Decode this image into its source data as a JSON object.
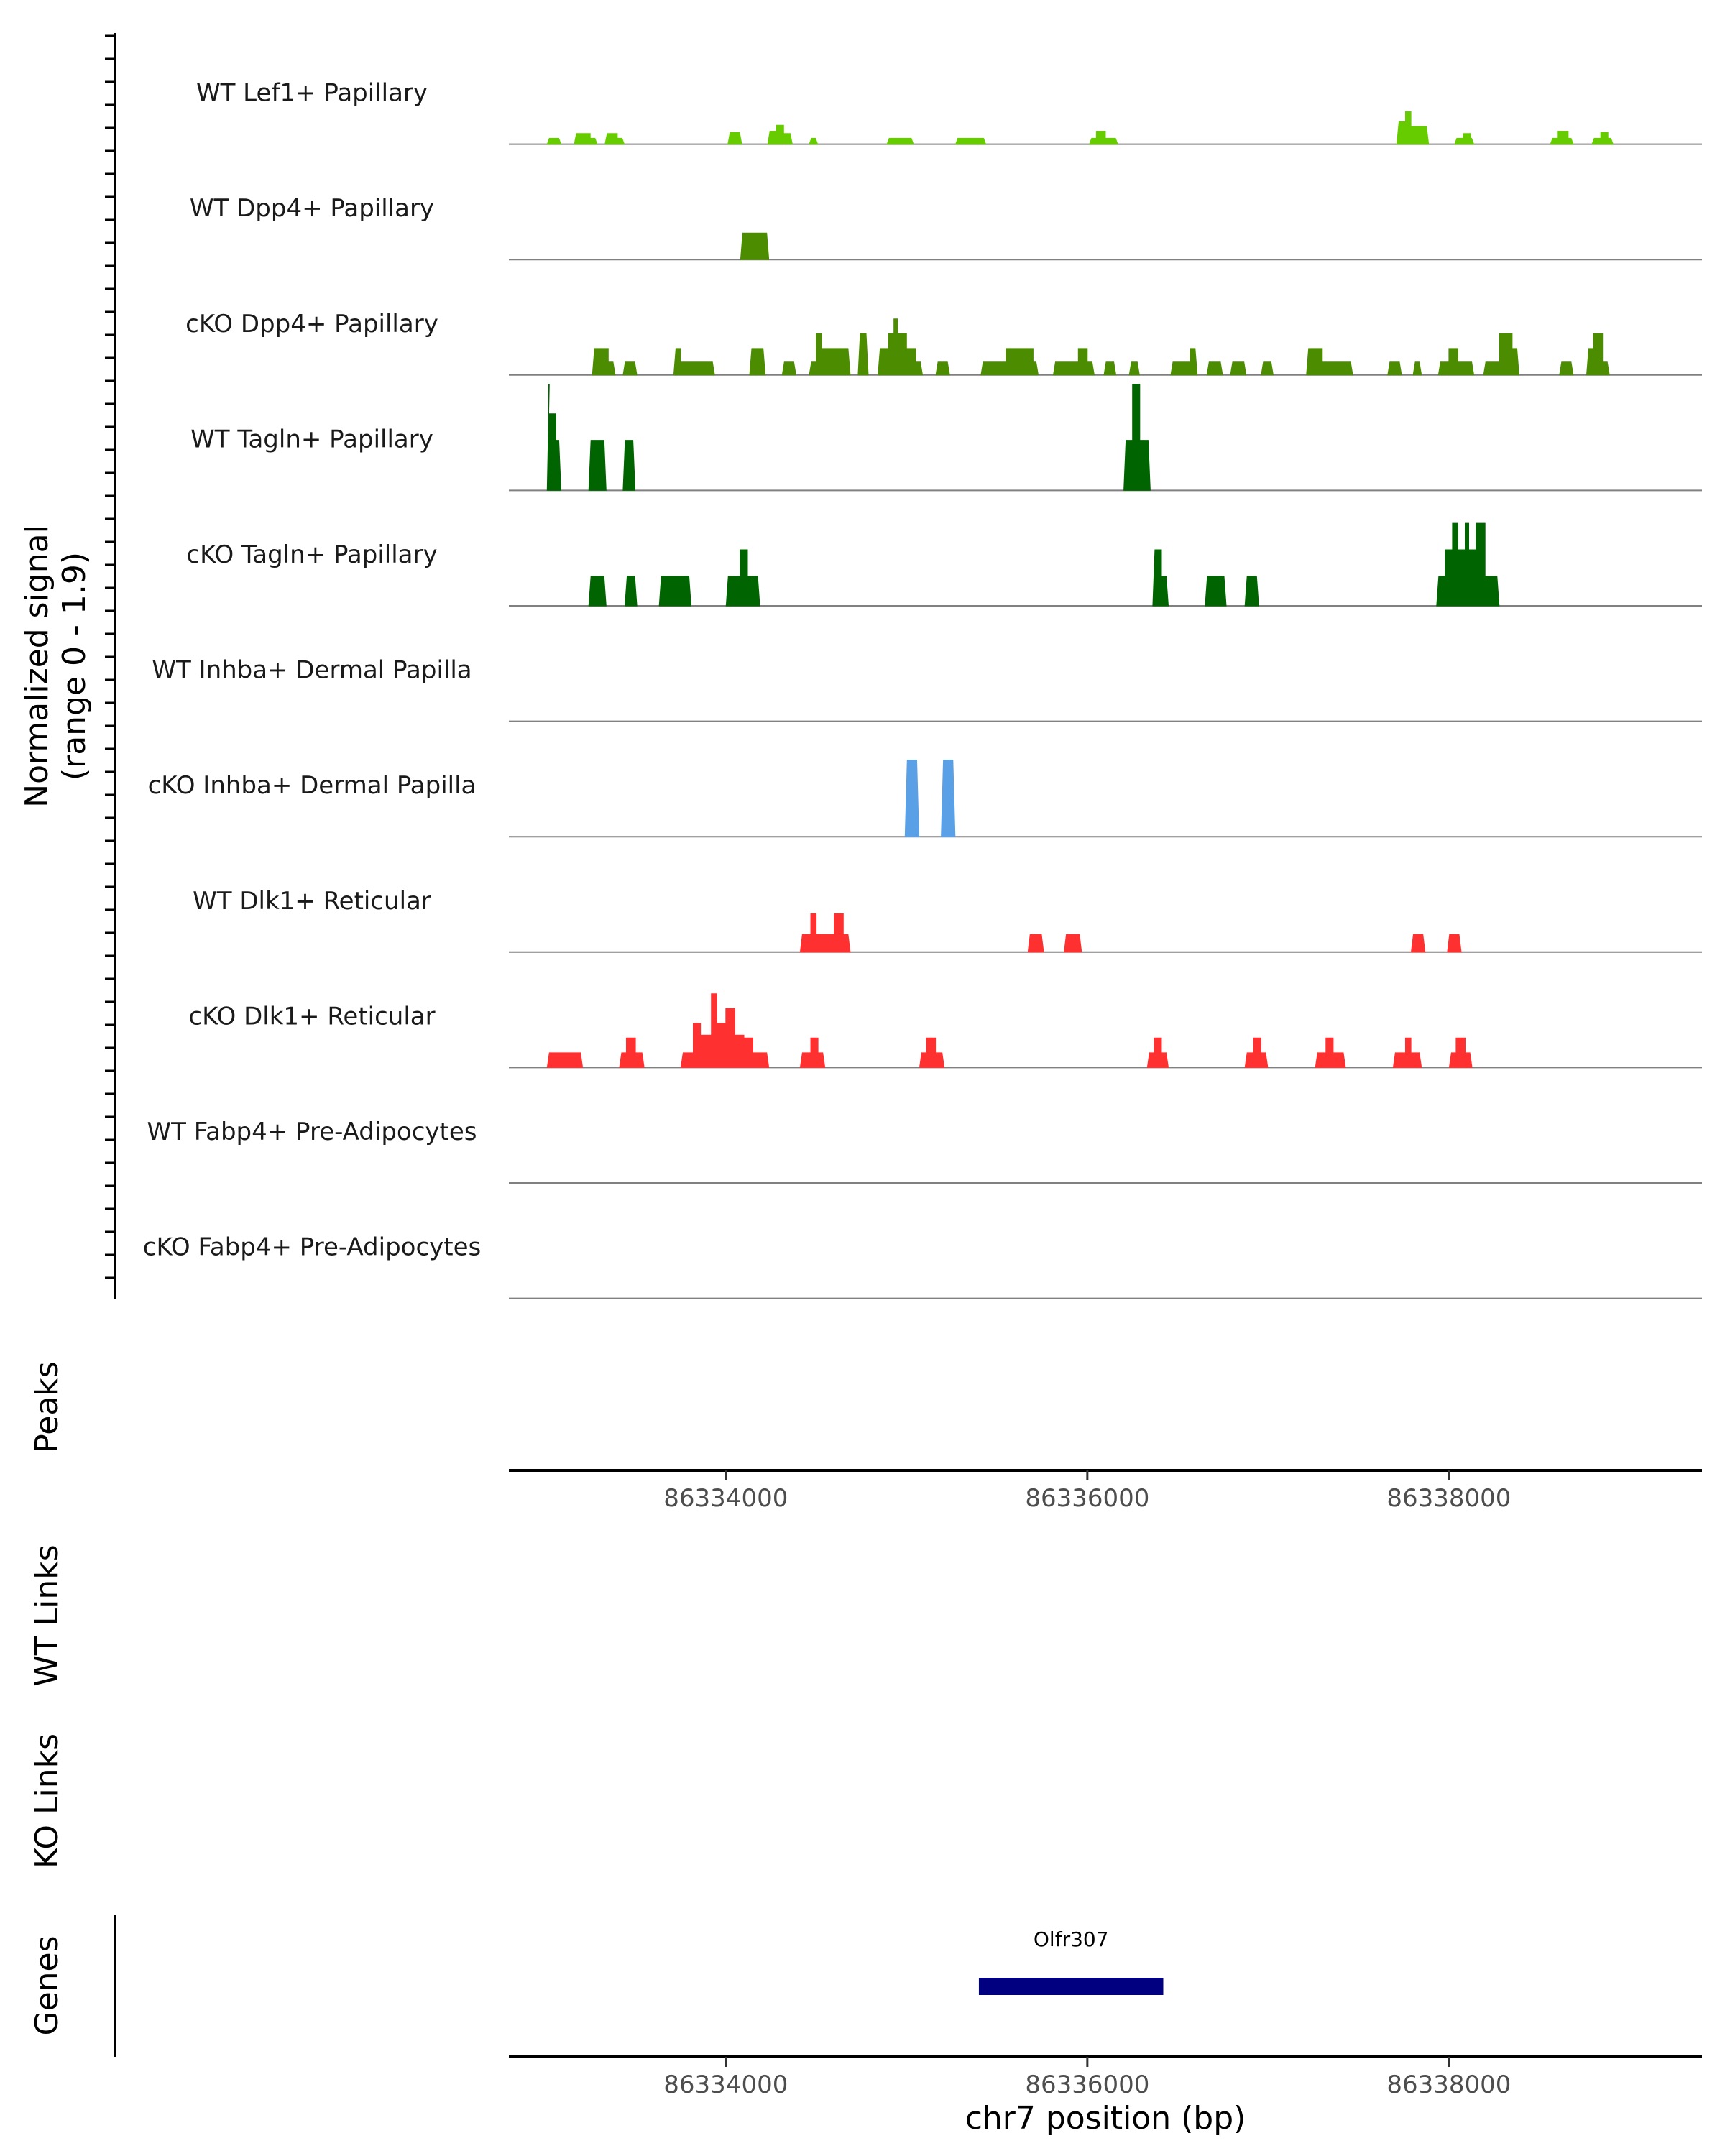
{
  "chart_data": {
    "type": "area",
    "genome_region": {
      "chrom": "chr7",
      "start": 86332800,
      "end": 86339400
    },
    "signal_panel": {
      "ylabel_line1": "Normalized signal",
      "ylabel_line2": "(range 0 - 1.9)",
      "ylim": [
        0,
        1.9
      ],
      "tracks": [
        {
          "name": "WT Lef1+ Papillary",
          "color": "#66cc00",
          "peaks": [
            [
              86333000,
              86333100,
              0.1
            ],
            [
              86333150,
              86333250,
              0.18
            ],
            [
              86333250,
              86333300,
              0.1
            ],
            [
              86333320,
              86333400,
              0.18
            ],
            [
              86333400,
              86333450,
              0.1
            ],
            [
              86334000,
              86334100,
              0.2
            ],
            [
              86334220,
              86334280,
              0.22
            ],
            [
              86334280,
              86334320,
              0.32
            ],
            [
              86334320,
              86334380,
              0.18
            ],
            [
              86334450,
              86334520,
              0.1
            ],
            [
              86334880,
              86335050,
              0.1
            ],
            [
              86335260,
              86335450,
              0.1
            ],
            [
              86336000,
              86336050,
              0.1
            ],
            [
              86336050,
              86336100,
              0.22
            ],
            [
              86336100,
              86336180,
              0.1
            ],
            [
              86337700,
              86337760,
              0.38
            ],
            [
              86337760,
              86337790,
              0.55
            ],
            [
              86337790,
              86337900,
              0.3
            ],
            [
              86338020,
              86338080,
              0.1
            ],
            [
              86338080,
              86338120,
              0.18
            ],
            [
              86338120,
              86338150,
              0.1
            ],
            [
              86338550,
              86338600,
              0.1
            ],
            [
              86338600,
              86338660,
              0.22
            ],
            [
              86338660,
              86338700,
              0.1
            ],
            [
              86338780,
              86338840,
              0.1
            ],
            [
              86338840,
              86338880,
              0.2
            ],
            [
              86338880,
              86338920,
              0.1
            ]
          ]
        },
        {
          "name": "WT Dpp4+ Papillary",
          "color": "#4c8c00",
          "peaks": [
            [
              86334070,
              86334250,
              0.45
            ]
          ]
        },
        {
          "name": "cKO Dpp4+ Papillary",
          "color": "#4c8c00",
          "peaks": [
            [
              86333250,
              86333350,
              0.45
            ],
            [
              86333350,
              86333400,
              0.22
            ],
            [
              86333420,
              86333520,
              0.22
            ],
            [
              86333700,
              86333750,
              0.45
            ],
            [
              86333750,
              86333950,
              0.22
            ],
            [
              86334120,
              86334230,
              0.45
            ],
            [
              86334300,
              86334400,
              0.22
            ],
            [
              86334450,
              86334500,
              0.22
            ],
            [
              86334500,
              86334530,
              0.7
            ],
            [
              86334530,
              86334600,
              0.45
            ],
            [
              86334600,
              86334700,
              0.45
            ],
            [
              86334720,
              86334800,
              0.7
            ],
            [
              86334830,
              86334900,
              0.45
            ],
            [
              86334900,
              86334930,
              0.7
            ],
            [
              86334930,
              86334950,
              0.95
            ],
            [
              86334950,
              86335000,
              0.7
            ],
            [
              86335000,
              86335050,
              0.45
            ],
            [
              86335050,
              86335100,
              0.22
            ],
            [
              86335150,
              86335250,
              0.22
            ],
            [
              86335400,
              86335550,
              0.22
            ],
            [
              86335550,
              86335650,
              0.45
            ],
            [
              86335650,
              86335700,
              0.45
            ],
            [
              86335700,
              86335740,
              0.22
            ],
            [
              86335800,
              86335950,
              0.22
            ],
            [
              86335950,
              86336000,
              0.45
            ],
            [
              86336000,
              86336050,
              0.22
            ],
            [
              86336080,
              86336170,
              0.22
            ],
            [
              86336220,
              86336300,
              0.22
            ],
            [
              86336450,
              86336570,
              0.22
            ],
            [
              86336570,
              86336620,
              0.45
            ],
            [
              86336650,
              86336760,
              0.22
            ],
            [
              86336780,
              86336890,
              0.22
            ],
            [
              86336950,
              86337040,
              0.22
            ],
            [
              86337200,
              86337300,
              0.45
            ],
            [
              86337300,
              86337480,
              0.22
            ],
            [
              86337650,
              86337750,
              0.22
            ],
            [
              86337790,
              86337860,
              0.22
            ],
            [
              86337930,
              86338000,
              0.22
            ],
            [
              86338000,
              86338050,
              0.45
            ],
            [
              86338050,
              86338150,
              0.22
            ],
            [
              86338180,
              86338280,
              0.22
            ],
            [
              86338280,
              86338350,
              0.7
            ],
            [
              86338350,
              86338400,
              0.45
            ],
            [
              86338600,
              86338700,
              0.22
            ],
            [
              86338750,
              86338800,
              0.45
            ],
            [
              86338800,
              86338850,
              0.7
            ],
            [
              86338850,
              86338900,
              0.22
            ]
          ]
        },
        {
          "name": "WT Tagln+ Papillary",
          "color": "#006400",
          "peaks": [
            [
              86333000,
              86333020,
              1.8
            ],
            [
              86333020,
              86333060,
              1.3
            ],
            [
              86333060,
              86333100,
              0.85
            ],
            [
              86333230,
              86333350,
              0.85
            ],
            [
              86333420,
              86333510,
              0.85
            ],
            [
              86336190,
              86336250,
              0.85
            ],
            [
              86336250,
              86336290,
              1.8
            ],
            [
              86336290,
              86336360,
              0.85
            ]
          ]
        },
        {
          "name": "cKO Tagln+ Papillary",
          "color": "#006400",
          "peaks": [
            [
              86333230,
              86333350,
              0.5
            ],
            [
              86333430,
              86333520,
              0.5
            ],
            [
              86333620,
              86333820,
              0.5
            ],
            [
              86333990,
              86334080,
              0.5
            ],
            [
              86334080,
              86334120,
              0.95
            ],
            [
              86334120,
              86334200,
              0.5
            ],
            [
              86336350,
              86336410,
              0.95
            ],
            [
              86336410,
              86336460,
              0.5
            ],
            [
              86336640,
              86336780,
              0.5
            ],
            [
              86336860,
              86336960,
              0.5
            ],
            [
              86337920,
              86337980,
              0.5
            ],
            [
              86337980,
              86338020,
              0.95
            ],
            [
              86338020,
              86338050,
              1.4
            ],
            [
              86338050,
              86338090,
              0.95
            ],
            [
              86338090,
              86338110,
              1.4
            ],
            [
              86338110,
              86338150,
              0.95
            ],
            [
              86338150,
              86338200,
              1.4
            ],
            [
              86338200,
              86338290,
              0.5
            ]
          ]
        },
        {
          "name": "WT Inhba+ Dermal Papilla",
          "color": "#5aa0e6",
          "peaks": []
        },
        {
          "name": "cKO Inhba+ Dermal Papilla",
          "color": "#5aa0e6",
          "peaks": [
            [
              86334980,
              86335080,
              1.3
            ],
            [
              86335180,
              86335280,
              1.3
            ]
          ]
        },
        {
          "name": "WT Dlk1+ Reticular",
          "color": "#ff3030",
          "peaks": [
            [
              86334400,
              86334470,
              0.3
            ],
            [
              86334470,
              86334500,
              0.65
            ],
            [
              86334500,
              86334600,
              0.3
            ],
            [
              86334600,
              86334650,
              0.65
            ],
            [
              86334650,
              86334700,
              0.3
            ],
            [
              86335660,
              86335770,
              0.3
            ],
            [
              86335860,
              86335980,
              0.3
            ],
            [
              86337780,
              86337880,
              0.3
            ],
            [
              86337980,
              86338080,
              0.3
            ]
          ]
        },
        {
          "name": "cKO Dlk1+ Reticular",
          "color": "#ff3030",
          "peaks": [
            [
              86333000,
              86333100,
              0.25
            ],
            [
              86333100,
              86333220,
              0.25
            ],
            [
              86333400,
              86333450,
              0.25
            ],
            [
              86333450,
              86333500,
              0.5
            ],
            [
              86333500,
              86333560,
              0.25
            ],
            [
              86333740,
              86333820,
              0.25
            ],
            [
              86333820,
              86333860,
              0.75
            ],
            [
              86333860,
              86333920,
              0.55
            ],
            [
              86333920,
              86333950,
              1.25
            ],
            [
              86333950,
              86334000,
              0.75
            ],
            [
              86334000,
              86334050,
              1.0
            ],
            [
              86334050,
              86334100,
              0.55
            ],
            [
              86334100,
              86334150,
              0.5
            ],
            [
              86334150,
              86334250,
              0.25
            ],
            [
              86334400,
              86334470,
              0.25
            ],
            [
              86334470,
              86334510,
              0.5
            ],
            [
              86334510,
              86334560,
              0.25
            ],
            [
              86335060,
              86335110,
              0.25
            ],
            [
              86335110,
              86335160,
              0.5
            ],
            [
              86335160,
              86335220,
              0.25
            ],
            [
              86336320,
              86336370,
              0.25
            ],
            [
              86336370,
              86336410,
              0.5
            ],
            [
              86336410,
              86336460,
              0.25
            ],
            [
              86336860,
              86336920,
              0.25
            ],
            [
              86336920,
              86336960,
              0.5
            ],
            [
              86336960,
              86337010,
              0.25
            ],
            [
              86337250,
              86337320,
              0.25
            ],
            [
              86337320,
              86337360,
              0.5
            ],
            [
              86337360,
              86337440,
              0.25
            ],
            [
              86337680,
              86337760,
              0.25
            ],
            [
              86337760,
              86337790,
              0.5
            ],
            [
              86337790,
              86337860,
              0.25
            ],
            [
              86337990,
              86338040,
              0.25
            ],
            [
              86338040,
              86338090,
              0.5
            ],
            [
              86338090,
              86338140,
              0.25
            ]
          ]
        },
        {
          "name": "WT Fabp4+ Pre-Adipocytes",
          "color": "#888888",
          "peaks": []
        },
        {
          "name": "cKO Fabp4+ Pre-Adipocytes",
          "color": "#888888",
          "peaks": []
        }
      ]
    },
    "peaks_panel": {
      "label": "Peaks"
    },
    "axis_top": {
      "ticks": [
        86334000,
        86336000,
        86338000
      ],
      "tick_labels": [
        "86334000",
        "86336000",
        "86338000"
      ]
    },
    "wt_links_panel": {
      "label": "WT Links"
    },
    "ko_links_panel": {
      "label": "KO Links"
    },
    "genes_panel": {
      "label": "Genes",
      "genes": [
        {
          "name": "Olfr307",
          "start": 86335400,
          "end": 86336420,
          "color": "#000080"
        }
      ]
    },
    "axis_bottom": {
      "ticks": [
        86334000,
        86336000,
        86338000
      ],
      "tick_labels": [
        "86334000",
        "86336000",
        "86338000"
      ],
      "xlabel": "chr7 position (bp)"
    }
  }
}
